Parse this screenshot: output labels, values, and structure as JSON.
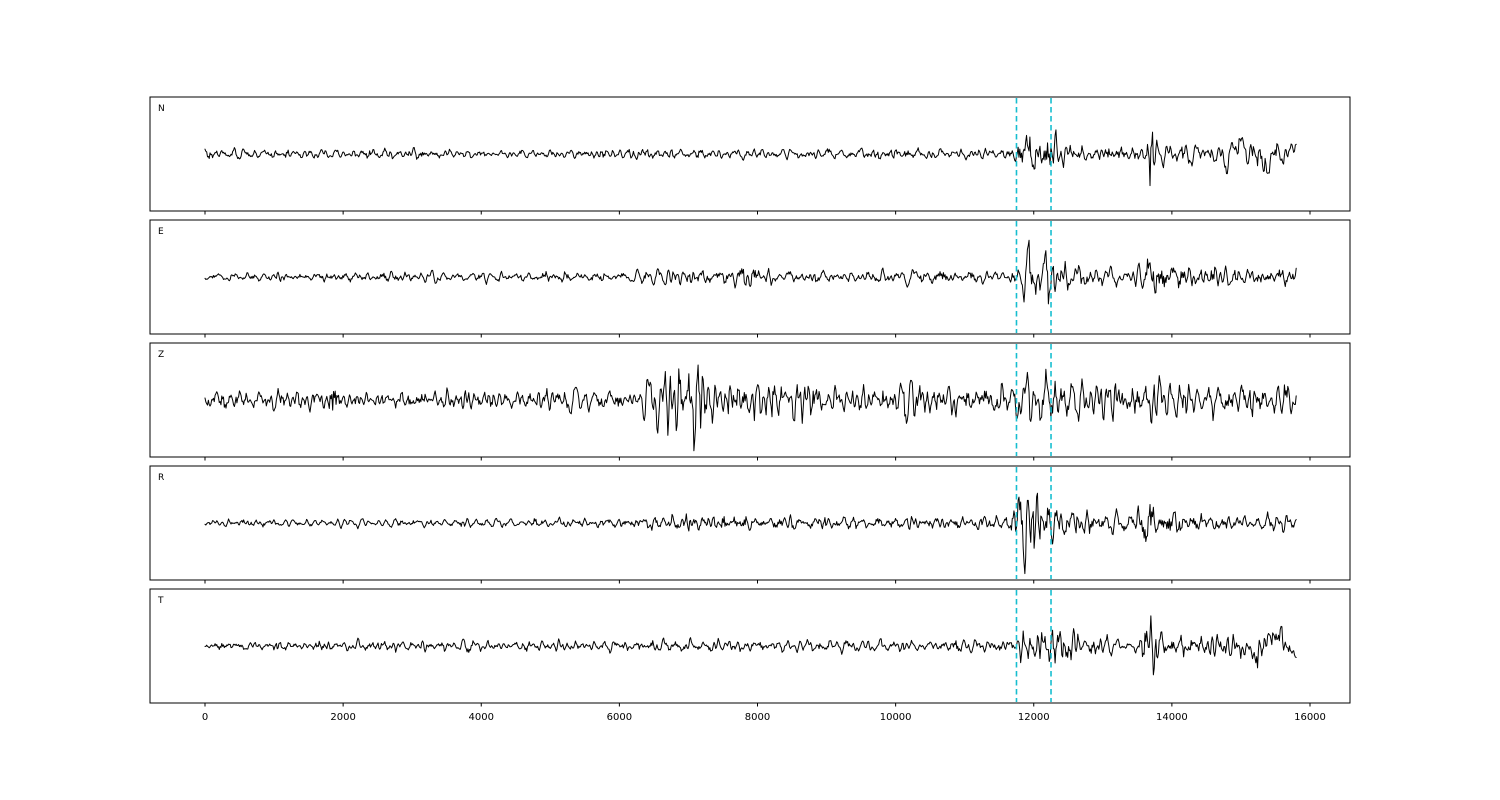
{
  "figure": {
    "background_color": "#ffffff",
    "trace_color": "#000000",
    "pick_color": "#17becf",
    "panel_labels": [
      "N",
      "E",
      "Z",
      "R",
      "T"
    ]
  },
  "chart_data": {
    "type": "line",
    "title": "",
    "xlabel": "",
    "ylabel": "",
    "legend": "none",
    "grid": false,
    "xlim": [
      -800,
      16600
    ],
    "x_ticks": [
      0,
      2000,
      4000,
      6000,
      8000,
      10000,
      12000,
      14000,
      16000
    ],
    "x_tick_labels": [
      "0",
      "2000",
      "4000",
      "6000",
      "8000",
      "10000",
      "12000",
      "14000",
      "16000"
    ],
    "sample_range": [
      0,
      15800
    ],
    "pick_lines_x": [
      11750,
      12250
    ],
    "pick_line_style": "dashed",
    "pick_line_color": "#17becf",
    "sample_count": 1300,
    "series": [
      {
        "name": "N",
        "seed": 101,
        "envelope_hf": [
          [
            0,
            5
          ],
          [
            11600,
            5
          ],
          [
            11750,
            7
          ],
          [
            11850,
            26
          ],
          [
            12000,
            20
          ],
          [
            12200,
            26
          ],
          [
            12400,
            11
          ],
          [
            12800,
            8
          ],
          [
            13450,
            7
          ],
          [
            13620,
            8
          ],
          [
            13680,
            46
          ],
          [
            13790,
            12
          ],
          [
            14300,
            9
          ],
          [
            15800,
            8
          ]
        ],
        "envelope_lf": [
          [
            0,
            0
          ],
          [
            14600,
            2
          ],
          [
            14900,
            16
          ],
          [
            15150,
            22
          ],
          [
            15500,
            20
          ],
          [
            15700,
            12
          ],
          [
            15800,
            6
          ]
        ]
      },
      {
        "name": "E",
        "seed": 202,
        "envelope_hf": [
          [
            0,
            4
          ],
          [
            1300,
            4
          ],
          [
            1600,
            6
          ],
          [
            2100,
            5
          ],
          [
            6000,
            5
          ],
          [
            6400,
            9
          ],
          [
            7200,
            8
          ],
          [
            7800,
            9
          ],
          [
            8400,
            7
          ],
          [
            9500,
            7
          ],
          [
            11000,
            6
          ],
          [
            11650,
            6
          ],
          [
            11800,
            12
          ],
          [
            11900,
            38
          ],
          [
            12050,
            20
          ],
          [
            12200,
            30
          ],
          [
            12400,
            14
          ],
          [
            12750,
            10
          ],
          [
            13300,
            8
          ],
          [
            13600,
            10
          ],
          [
            13690,
            34
          ],
          [
            13820,
            14
          ],
          [
            14400,
            10
          ],
          [
            15800,
            9
          ]
        ],
        "envelope_lf": [
          [
            0,
            0
          ],
          [
            15800,
            2
          ]
        ]
      },
      {
        "name": "Z",
        "seed": 303,
        "envelope_hf": [
          [
            0,
            18
          ],
          [
            130,
            10
          ],
          [
            1000,
            9
          ],
          [
            1700,
            9
          ],
          [
            1850,
            20
          ],
          [
            2050,
            10
          ],
          [
            3500,
            9
          ],
          [
            5000,
            10
          ],
          [
            6300,
            11
          ],
          [
            6500,
            30
          ],
          [
            6700,
            38
          ],
          [
            6950,
            34
          ],
          [
            7150,
            40
          ],
          [
            7450,
            30
          ],
          [
            7750,
            22
          ],
          [
            8400,
            20
          ],
          [
            9100,
            16
          ],
          [
            9900,
            14
          ],
          [
            10200,
            22
          ],
          [
            10550,
            14
          ],
          [
            11300,
            14
          ],
          [
            11800,
            22
          ],
          [
            12050,
            28
          ],
          [
            12350,
            24
          ],
          [
            12700,
            18
          ],
          [
            13100,
            16
          ],
          [
            13620,
            18
          ],
          [
            13720,
            28
          ],
          [
            13950,
            18
          ],
          [
            14600,
            16
          ],
          [
            15300,
            16
          ],
          [
            15800,
            18
          ]
        ],
        "envelope_lf": [
          [
            0,
            1
          ],
          [
            15800,
            2
          ]
        ]
      },
      {
        "name": "R",
        "seed": 404,
        "envelope_hf": [
          [
            0,
            3.5
          ],
          [
            3000,
            4
          ],
          [
            5800,
            4.5
          ],
          [
            6500,
            8
          ],
          [
            7100,
            9
          ],
          [
            7700,
            8
          ],
          [
            8600,
            7
          ],
          [
            9700,
            6
          ],
          [
            11000,
            6
          ],
          [
            11650,
            7
          ],
          [
            11800,
            34
          ],
          [
            11950,
            40
          ],
          [
            12150,
            30
          ],
          [
            12350,
            22
          ],
          [
            12550,
            13
          ],
          [
            12950,
            10
          ],
          [
            13400,
            9
          ],
          [
            13650,
            34
          ],
          [
            13800,
            16
          ],
          [
            14300,
            11
          ],
          [
            14900,
            9
          ],
          [
            15800,
            8
          ]
        ],
        "envelope_lf": [
          [
            0,
            0
          ],
          [
            15800,
            1
          ]
        ]
      },
      {
        "name": "T",
        "seed": 505,
        "envelope_hf": [
          [
            0,
            4.5
          ],
          [
            2000,
            5
          ],
          [
            5000,
            5
          ],
          [
            7000,
            6
          ],
          [
            8500,
            6
          ],
          [
            10000,
            6
          ],
          [
            11200,
            6
          ],
          [
            11700,
            8
          ],
          [
            11880,
            24
          ],
          [
            12150,
            20
          ],
          [
            12400,
            18
          ],
          [
            12650,
            12
          ],
          [
            13100,
            10
          ],
          [
            13560,
            10
          ],
          [
            13690,
            46
          ],
          [
            13830,
            14
          ],
          [
            14400,
            10
          ],
          [
            14900,
            12
          ],
          [
            15800,
            8
          ]
        ],
        "envelope_lf": [
          [
            0,
            0
          ],
          [
            14700,
            1
          ],
          [
            15000,
            18
          ],
          [
            15250,
            26
          ],
          [
            15550,
            18
          ],
          [
            15750,
            8
          ],
          [
            15800,
            6
          ]
        ]
      }
    ]
  }
}
